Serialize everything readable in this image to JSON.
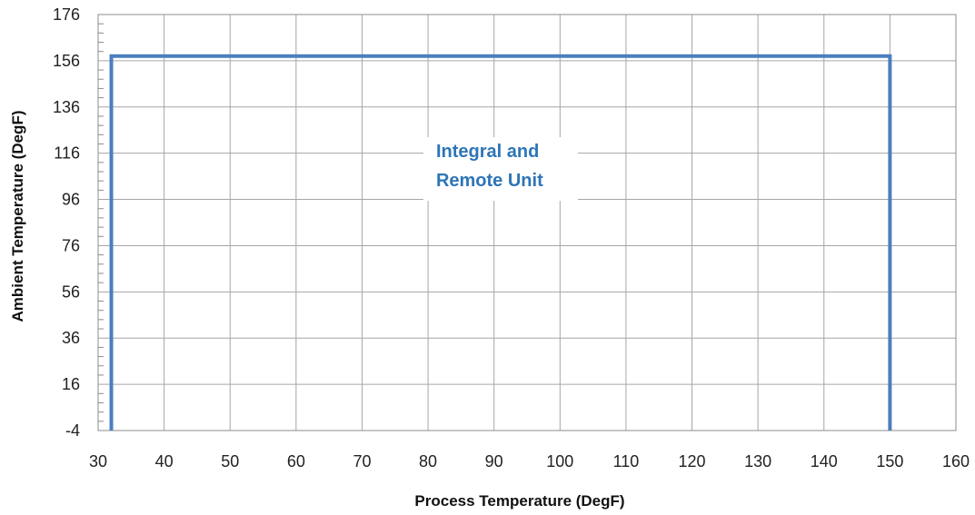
{
  "chart_data": {
    "type": "line",
    "title": "",
    "xlabel": "Process Temperature (DegF)",
    "ylabel": "Ambient Temperature (DegF)",
    "xlim": [
      30,
      160
    ],
    "ylim": [
      -4,
      176
    ],
    "x_ticks": [
      30,
      40,
      50,
      60,
      70,
      80,
      90,
      100,
      110,
      120,
      130,
      140,
      150,
      160
    ],
    "y_ticks": [
      -4,
      16,
      36,
      56,
      76,
      96,
      116,
      136,
      156,
      176
    ],
    "grid": true,
    "series": [
      {
        "x": [
          32,
          32,
          150,
          150
        ],
        "y": [
          -4,
          158,
          158,
          -4
        ]
      }
    ],
    "annotations": [
      {
        "lines": [
          "Integral and",
          "Remote  Unit"
        ],
        "x": 91,
        "y": 106
      }
    ],
    "colors": {
      "line": "#4a7fbf",
      "annotation": "#2e75b6",
      "grid": "#a6a6a6"
    }
  }
}
